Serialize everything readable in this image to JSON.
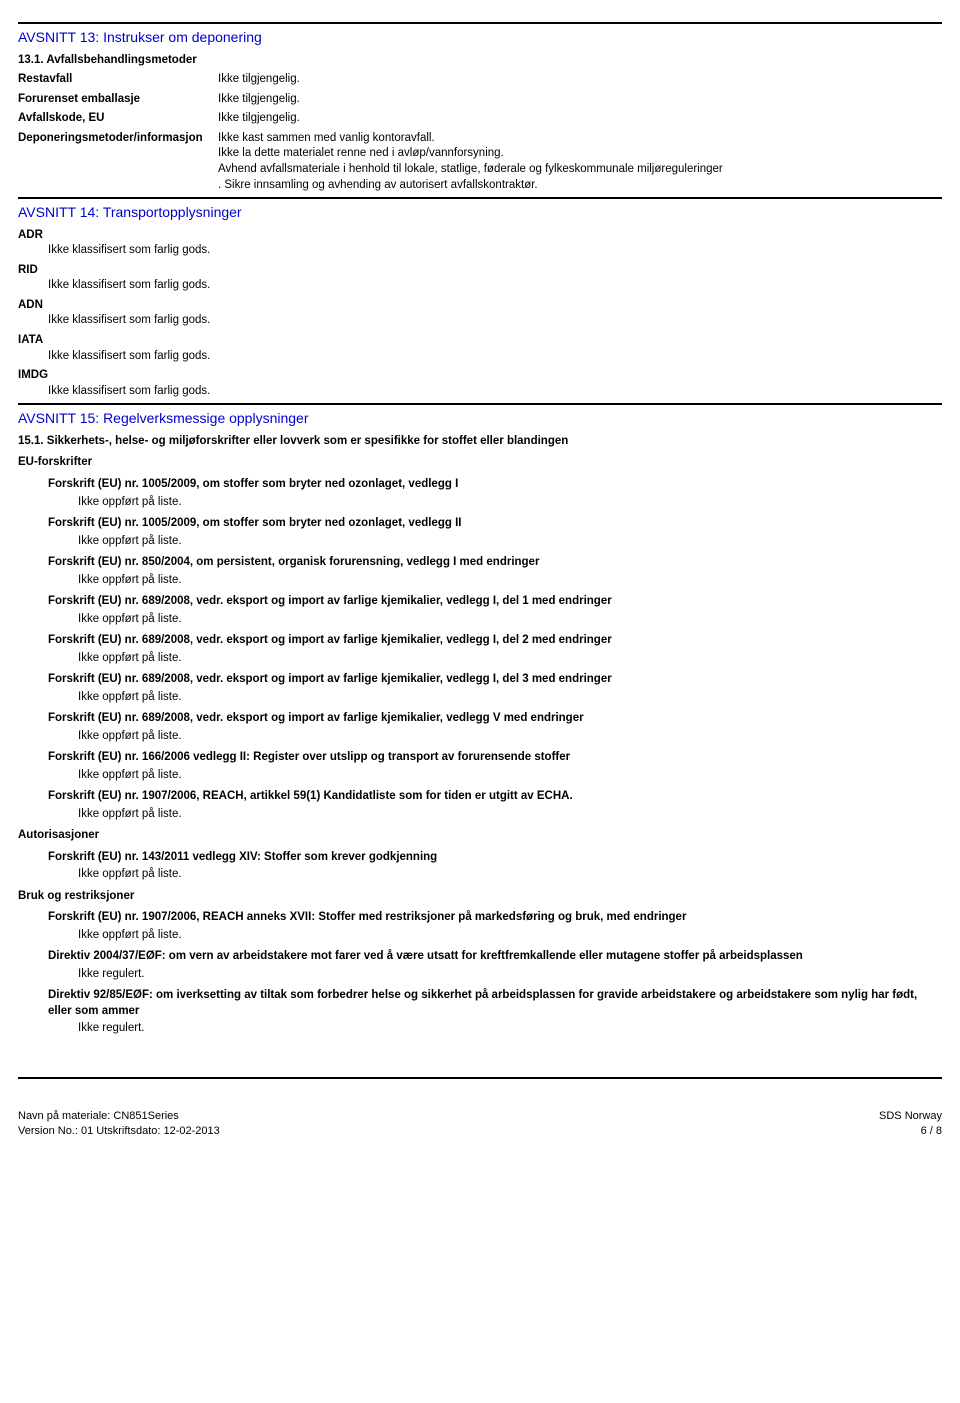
{
  "section13": {
    "title": "AVSNITT 13: Instrukser om deponering",
    "sub1": "13.1. Avfallsbehandlingsmetoder",
    "rows": [
      {
        "label": "Restavfall",
        "value": "Ikke tilgjengelig."
      },
      {
        "label": "Forurenset emballasje",
        "value": "Ikke tilgjengelig."
      },
      {
        "label": "Avfallskode, EU",
        "value": "Ikke tilgjengelig."
      },
      {
        "label": "Deponeringsmetoder/informasjon",
        "value": "Ikke kast sammen med vanlig kontoravfall.\nIkke la dette materialet renne ned i avløp/vannforsyning.\nAvhend avfallsmateriale i henhold til lokale, statlige, føderale og fylkeskommunale miljøreguleringer\n. Sikre innsamling og avhending av autorisert avfallskontraktør."
      }
    ]
  },
  "section14": {
    "title": "AVSNITT 14: Transportopplysninger",
    "items": [
      {
        "code": "ADR",
        "text": "Ikke klassifisert som farlig gods."
      },
      {
        "code": "RID",
        "text": "Ikke klassifisert som farlig gods."
      },
      {
        "code": "ADN",
        "text": "Ikke klassifisert som farlig gods."
      },
      {
        "code": "IATA",
        "text": "Ikke klassifisert som farlig gods."
      },
      {
        "code": "IMDG",
        "text": "Ikke klassifisert som farlig gods."
      }
    ]
  },
  "section15": {
    "title": "AVSNITT 15: Regelverksmessige opplysninger",
    "sub1": "15.1. Sikkerhets-, helse- og miljøforskrifter eller lovverk som er spesifikke for stoffet eller blandingen",
    "eu_label": "EU-forskrifter",
    "eu_items": [
      {
        "title": "Forskrift (EU) nr. 1005/2009, om stoffer som bryter ned ozonlaget, vedlegg I",
        "sub": "Ikke oppført på liste."
      },
      {
        "title": "Forskrift (EU) nr. 1005/2009, om stoffer som bryter ned ozonlaget, vedlegg II",
        "sub": "Ikke oppført på liste."
      },
      {
        "title": "Forskrift (EU) nr. 850/2004, om persistent, organisk forurensning, vedlegg I med endringer",
        "sub": "Ikke oppført på liste."
      },
      {
        "title": "Forskrift (EU) nr. 689/2008, vedr. eksport og import av farlige kjemikalier, vedlegg I, del 1 med endringer",
        "sub": "Ikke oppført på liste."
      },
      {
        "title": "Forskrift (EU) nr. 689/2008, vedr. eksport og import av farlige kjemikalier, vedlegg I, del 2 med endringer",
        "sub": "Ikke oppført på liste."
      },
      {
        "title": "Forskrift (EU) nr. 689/2008, vedr. eksport og import av farlige kjemikalier, vedlegg I, del 3 med endringer",
        "sub": "Ikke oppført på liste."
      },
      {
        "title": "Forskrift (EU) nr. 689/2008, vedr. eksport og import av farlige kjemikalier, vedlegg V med endringer",
        "sub": "Ikke oppført på liste."
      },
      {
        "title": "Forskrift (EU) nr. 166/2006 vedlegg II: Register over utslipp og transport av forurensende stoffer",
        "sub": "Ikke oppført på liste."
      },
      {
        "title": "Forskrift (EU) nr. 1907/2006, REACH, artikkel 59(1) Kandidatliste som for tiden er utgitt av ECHA.",
        "sub": "Ikke oppført på liste."
      }
    ],
    "auth_label": "Autorisasjoner",
    "auth_items": [
      {
        "title": "Forskrift (EU) nr. 143/2011 vedlegg XIV: Stoffer som krever godkjenning",
        "sub": "Ikke oppført på liste."
      }
    ],
    "restrict_label": "Bruk og restriksjoner",
    "restrict_items": [
      {
        "title": "Forskrift (EU) nr. 1907/2006, REACH anneks XVII: Stoffer med restriksjoner på markedsføring og bruk, med endringer",
        "sub": "Ikke oppført på liste."
      },
      {
        "title": "Direktiv 2004/37/EØF: om vern av arbeidstakere mot farer ved å være utsatt for kreftfremkallende eller mutagene stoffer på arbeidsplassen",
        "sub": "Ikke regulert."
      },
      {
        "title": "Direktiv 92/85/EØF: om iverksetting av tiltak som forbedrer helse og sikkerhet på arbeidsplassen for gravide arbeidstakere og arbeidstakere som nylig har født, eller som ammer",
        "sub": "Ikke regulert."
      }
    ]
  },
  "footer": {
    "material": "Navn på materiale: CN851Series",
    "version": "Version No.: 01    Utskriftsdato: 12-02-2013",
    "right1": "SDS Norway",
    "right2": "6 / 8"
  }
}
